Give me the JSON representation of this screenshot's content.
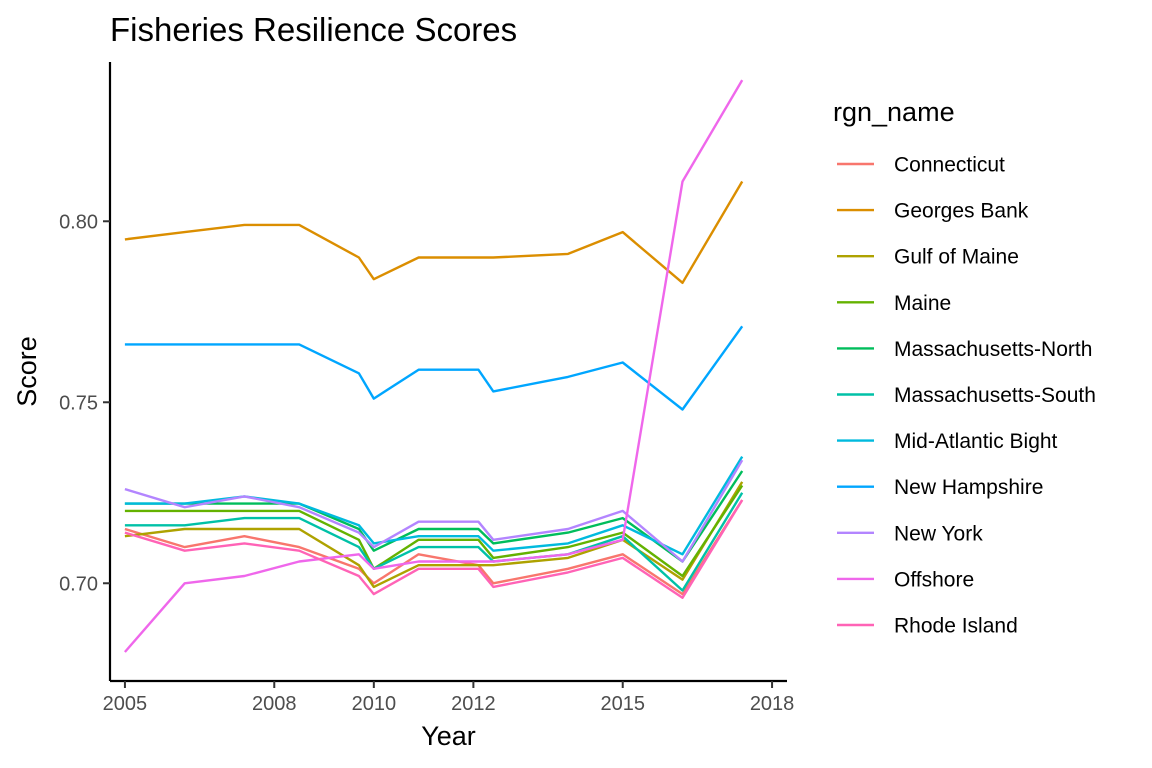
{
  "chart_data": {
    "type": "line",
    "title": "Fisheries Resilience Scores",
    "xlabel": "Year",
    "ylabel": "Score",
    "legend_title": "rgn_name",
    "legend_position": "right",
    "grid": false,
    "xlim": [
      2004.7,
      2018.3
    ],
    "ylim": [
      0.673,
      0.844
    ],
    "x_ticks": [
      2005,
      2008,
      2010,
      2012,
      2015,
      2018
    ],
    "x_tick_labels": [
      "2005",
      "2008",
      "2010",
      "2012",
      "2015",
      "2018"
    ],
    "y_ticks": [
      0.7,
      0.75,
      0.8
    ],
    "y_tick_labels": [
      "0.70",
      "0.75",
      "0.80"
    ],
    "x": [
      2005,
      2006.2,
      2007.4,
      2008.5,
      2009.7,
      2010,
      2010.9,
      2012.1,
      2012.4,
      2013.9,
      2015,
      2016.2,
      2017.4
    ],
    "series": [
      {
        "name": "Connecticut",
        "color": "#F8766D",
        "values": [
          0.715,
          0.71,
          0.713,
          0.71,
          0.704,
          0.7,
          0.708,
          0.705,
          0.7,
          0.704,
          0.708,
          0.697,
          0.723
        ]
      },
      {
        "name": "Georges Bank",
        "color": "#DB8E00",
        "values": [
          0.795,
          0.797,
          0.799,
          0.799,
          0.79,
          0.784,
          0.79,
          0.79,
          0.79,
          0.791,
          0.797,
          0.783,
          0.811
        ]
      },
      {
        "name": "Gulf of Maine",
        "color": "#AEA200",
        "values": [
          0.713,
          0.715,
          0.715,
          0.715,
          0.705,
          0.699,
          0.705,
          0.705,
          0.705,
          0.707,
          0.712,
          0.701,
          0.728
        ]
      },
      {
        "name": "Maine",
        "color": "#64B200",
        "values": [
          0.72,
          0.72,
          0.72,
          0.72,
          0.712,
          0.704,
          0.712,
          0.712,
          0.707,
          0.71,
          0.714,
          0.702,
          0.727
        ]
      },
      {
        "name": "Massachusetts-North",
        "color": "#00BD5C",
        "values": [
          0.722,
          0.722,
          0.722,
          0.722,
          0.715,
          0.709,
          0.715,
          0.715,
          0.711,
          0.714,
          0.718,
          0.706,
          0.731
        ]
      },
      {
        "name": "Massachusetts-South",
        "color": "#00C1A7",
        "values": [
          0.716,
          0.716,
          0.718,
          0.718,
          0.71,
          0.704,
          0.71,
          0.71,
          0.706,
          0.708,
          0.713,
          0.698,
          0.725
        ]
      },
      {
        "name": "Mid-Atlantic Bight",
        "color": "#00BADE",
        "values": [
          0.722,
          0.722,
          0.724,
          0.722,
          0.716,
          0.711,
          0.713,
          0.713,
          0.709,
          0.711,
          0.716,
          0.708,
          0.735
        ]
      },
      {
        "name": "New Hampshire",
        "color": "#00A6FF",
        "values": [
          0.766,
          0.766,
          0.766,
          0.766,
          0.758,
          0.751,
          0.759,
          0.759,
          0.753,
          0.757,
          0.761,
          0.748,
          0.771
        ]
      },
      {
        "name": "New York",
        "color": "#B385FF",
        "values": [
          0.726,
          0.721,
          0.724,
          0.721,
          0.714,
          0.71,
          0.717,
          0.717,
          0.712,
          0.715,
          0.72,
          0.706,
          0.734
        ]
      },
      {
        "name": "Offshore",
        "color": "#EF67EB",
        "values": [
          0.681,
          0.7,
          0.702,
          0.706,
          0.708,
          0.704,
          0.706,
          0.706,
          0.706,
          0.708,
          0.712,
          0.811,
          0.839
        ]
      },
      {
        "name": "Rhode Island",
        "color": "#FF63B6",
        "values": [
          0.714,
          0.709,
          0.711,
          0.709,
          0.702,
          0.697,
          0.704,
          0.704,
          0.699,
          0.703,
          0.707,
          0.696,
          0.723
        ]
      }
    ]
  }
}
